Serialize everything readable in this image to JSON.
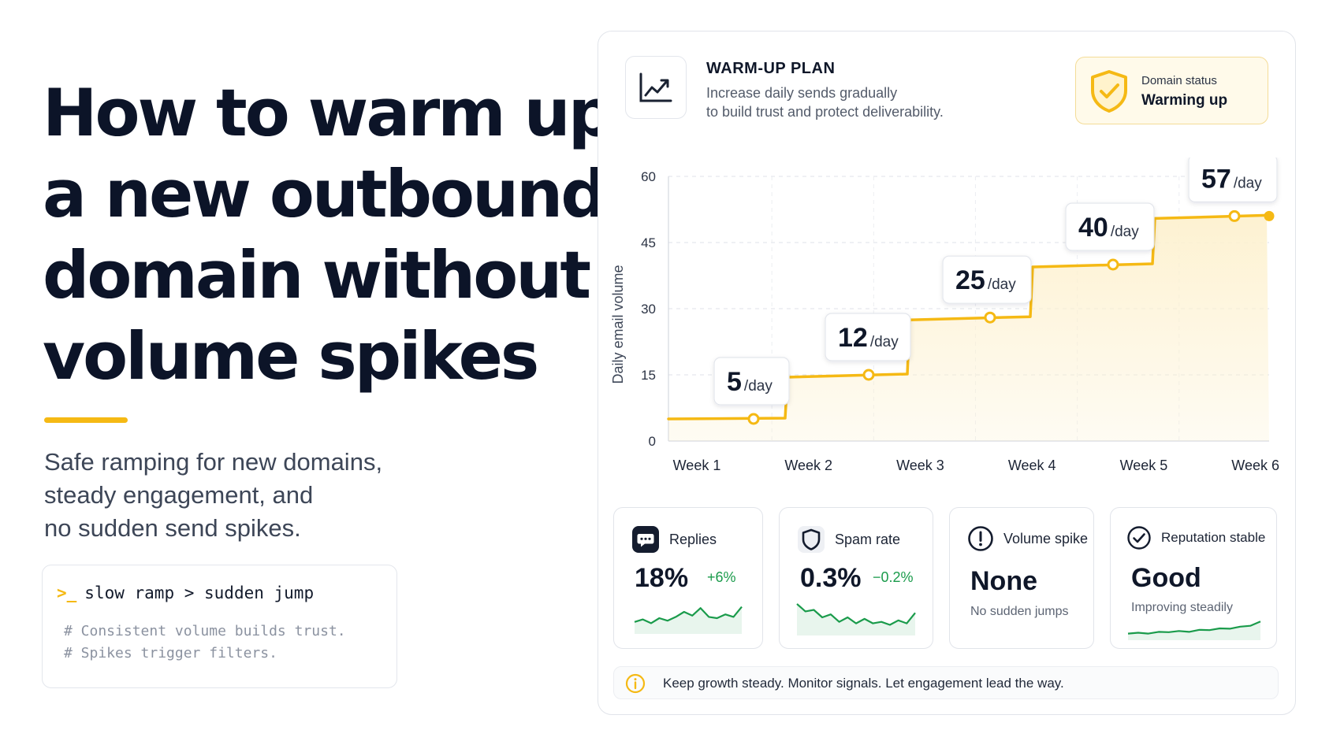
{
  "headline": {
    "lines": [
      "How to warm up",
      "a new outbound",
      "domain without",
      "volume spikes"
    ]
  },
  "subhead": {
    "lines": [
      "Safe ramping for new domains,",
      "steady engagement, and",
      "no sudden send spikes."
    ]
  },
  "code": {
    "prompt": ">_",
    "command": "slow ramp > sudden jump",
    "comments": [
      "# Consistent volume builds trust.",
      "# Spikes trigger filters."
    ]
  },
  "plan": {
    "icon": "trend-chart-icon",
    "title": "WARM-UP PLAN",
    "desc_lines": [
      "Increase daily sends gradually",
      "to build trust and protect deliverability."
    ]
  },
  "status": {
    "icon": "shield-check-icon",
    "label": "Domain status",
    "value": "Warming up"
  },
  "chart_data": {
    "type": "area",
    "title": "",
    "xlabel": "",
    "ylabel": "Daily email volume",
    "categories": [
      "Week 1",
      "Week 2",
      "Week 3",
      "Week 4",
      "Week 5",
      "Week 6"
    ],
    "values": [
      5,
      12,
      25,
      40,
      57
    ],
    "points": [
      {
        "week": 1,
        "value": 5
      },
      {
        "week": 2,
        "value": 12
      },
      {
        "week": 3,
        "value": 25
      },
      {
        "week": 4,
        "value": 40
      },
      {
        "week": 5,
        "value": 57
      }
    ],
    "line_y": [
      5,
      15,
      28,
      40,
      51
    ],
    "labels": [
      {
        "value": "5",
        "unit": "/day"
      },
      {
        "value": "12",
        "unit": "/day"
      },
      {
        "value": "25",
        "unit": "/day"
      },
      {
        "value": "40",
        "unit": "/day"
      },
      {
        "value": "57",
        "unit": "/day"
      }
    ],
    "yticks": [
      0,
      15,
      30,
      45,
      60
    ],
    "ylim": [
      0,
      60
    ],
    "grid": true,
    "color": "#f5b914",
    "fill_color": "#fdf1cf"
  },
  "metrics": [
    {
      "icon": "chat-bubble-icon",
      "label": "Replies",
      "value": "18%",
      "delta": "+6%",
      "spark": [
        0.35,
        0.45,
        0.3,
        0.5,
        0.4,
        0.55,
        0.75,
        0.6,
        0.9,
        0.55,
        0.5,
        0.65,
        0.55,
        0.95
      ],
      "color": "#1a9b4b"
    },
    {
      "icon": "shield-icon",
      "label": "Spam rate",
      "value": "0.3%",
      "delta": "−0.2%",
      "spark": [
        0.95,
        0.7,
        0.75,
        0.5,
        0.6,
        0.35,
        0.5,
        0.3,
        0.45,
        0.3,
        0.35,
        0.25,
        0.4,
        0.3,
        0.65
      ],
      "color": "#1a9b4b"
    },
    {
      "icon": "alert-circle-icon",
      "label": "Volume spike",
      "value": "None",
      "note": "No sudden jumps"
    },
    {
      "icon": "check-circle-icon",
      "label": "Reputation stable",
      "value": "Good",
      "note": "Improving steadily",
      "spark": [
        0.2,
        0.25,
        0.2,
        0.3,
        0.28,
        0.35,
        0.3,
        0.42,
        0.4,
        0.5,
        0.48,
        0.6,
        0.65,
        0.9
      ],
      "color": "#1a9b4b"
    }
  ],
  "footer": {
    "icon": "info-circle-icon",
    "text": "Keep growth steady. Monitor signals. Let engagement lead the way."
  }
}
